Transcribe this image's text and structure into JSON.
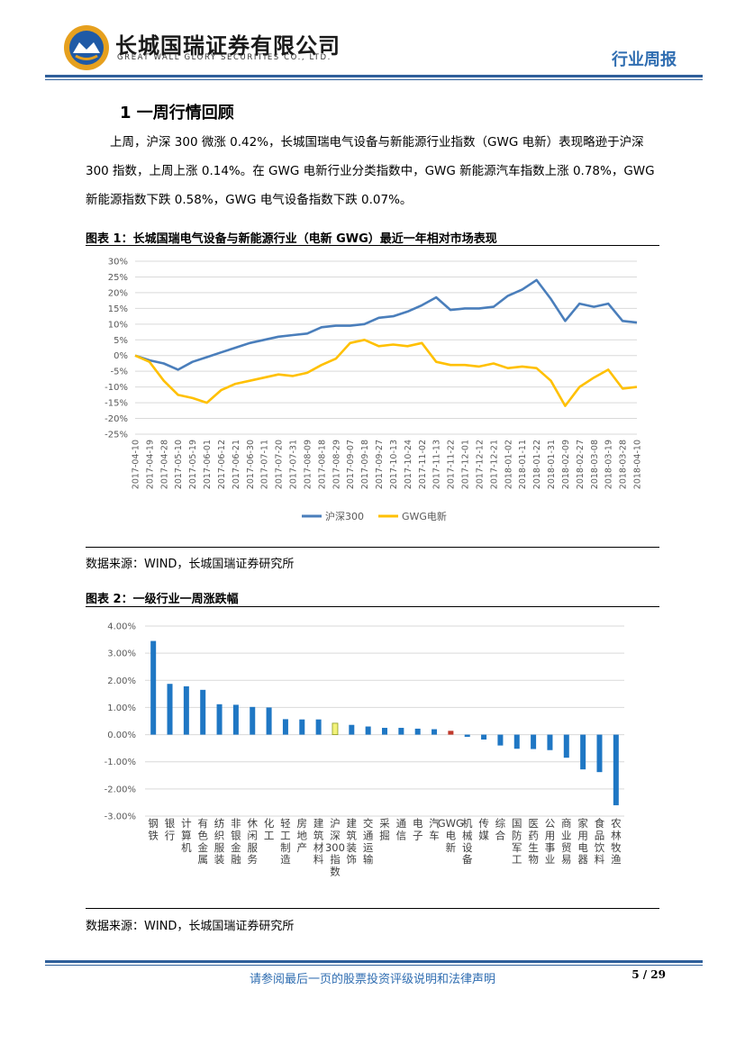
{
  "header": {
    "company_cn": "长城国瑞证券有限公司",
    "company_en": "GREAT WALL GLORY SECURITIES CO., LTD.",
    "report_type": "行业周报"
  },
  "section": {
    "title": "1  一周行情回顾",
    "paragraph": "上周，沪深 300 微涨 0.42%，长城国瑞电气设备与新能源行业指数（GWG 电新）表现略逊于沪深 300 指数，上周上涨 0.14%。在 GWG 电新行业分类指数中，GWG 新能源汽车指数上涨 0.78%，GWG 新能源指数下跌 0.58%，GWG 电气设备指数下跌 0.07%。"
  },
  "figure1": {
    "title": "图表 1：长城国瑞电气设备与新能源行业（电新 GWG）最近一年相对市场表现",
    "source": "数据来源：WIND，长城国瑞证券研究所"
  },
  "figure2": {
    "title": "图表 2：一级行业一周涨跌幅",
    "source": "数据来源：WIND，长城国瑞证券研究所"
  },
  "footer": {
    "disclaimer": "请参阅最后一页的股票投资评级说明和法律声明",
    "page": "5 / 29"
  },
  "chart_data": [
    {
      "type": "line",
      "title": "",
      "ylim": [
        -25,
        30
      ],
      "yticks": [
        "30%",
        "25%",
        "20%",
        "15%",
        "10%",
        "5%",
        "0%",
        "-5%",
        "-10%",
        "-15%",
        "-20%",
        "-25%"
      ],
      "x_tick_labels": [
        "2017-04-10",
        "2017-04-19",
        "2017-04-28",
        "2017-05-10",
        "2017-05-19",
        "2017-06-01",
        "2017-06-12",
        "2017-06-21",
        "2017-06-30",
        "2017-07-11",
        "2017-07-20",
        "2017-07-31",
        "2017-08-09",
        "2017-08-18",
        "2017-08-29",
        "2017-09-07",
        "2017-09-18",
        "2017-09-27",
        "2017-10-13",
        "2017-10-24",
        "2017-11-02",
        "2017-11-13",
        "2017-11-22",
        "2017-12-01",
        "2017-12-12",
        "2017-12-21",
        "2018-01-02",
        "2018-01-11",
        "2018-01-22",
        "2018-01-31",
        "2018-02-09",
        "2018-02-27",
        "2018-03-08",
        "2018-03-19",
        "2018-03-28",
        "2018-04-10"
      ],
      "legend_position": "bottom",
      "grid": true,
      "series": [
        {
          "name": "沪深300",
          "color": "#4a7ebb",
          "values": [
            0,
            -1.5,
            -2.5,
            -4.5,
            -2,
            -0.5,
            1,
            2.5,
            4,
            5,
            6,
            6.5,
            7,
            9,
            9.5,
            9.5,
            10,
            12,
            12.5,
            14,
            16,
            18.5,
            14.5,
            15,
            15,
            15.5,
            19,
            21,
            24,
            18,
            11,
            16.5,
            15.5,
            16.5,
            11,
            10.5
          ]
        },
        {
          "name": "GWG电新",
          "color": "#ffc000",
          "values": [
            0,
            -2,
            -8,
            -12.5,
            -13.5,
            -15,
            -11,
            -9,
            -8,
            -7,
            -6,
            -6.5,
            -5.5,
            -3,
            -1,
            4,
            5,
            3,
            3.5,
            3,
            4,
            -2,
            -3,
            -3,
            -3.5,
            -2.5,
            -4,
            -3.5,
            -4,
            -8,
            -16,
            -10,
            -7,
            -4.5,
            -10.5,
            -10
          ]
        }
      ]
    },
    {
      "type": "bar",
      "title": "",
      "ylim": [
        -3,
        4
      ],
      "yticks": [
        "4.00%",
        "3.00%",
        "2.00%",
        "1.00%",
        "0.00%",
        "-1.00%",
        "-2.00%",
        "-3.00%"
      ],
      "grid": true,
      "categories": [
        "钢铁",
        "银行",
        "计算机",
        "有色金属",
        "纺织服装",
        "非银金融",
        "休闲服务",
        "化工",
        "轻工制造",
        "房地产",
        "建筑材料",
        "沪深300指数",
        "建筑装饰",
        "交通运输",
        "采掘",
        "通信",
        "电子",
        "汽车",
        "GWG电新",
        "机械设备",
        "传媒",
        "综合",
        "国防军工",
        "医药生物",
        "公用事业",
        "商业贸易",
        "家用电器",
        "食品饮料",
        "农林牧渔"
      ],
      "values": [
        3.45,
        1.87,
        1.78,
        1.65,
        1.12,
        1.1,
        1.02,
        1.0,
        0.57,
        0.56,
        0.56,
        0.42,
        0.36,
        0.3,
        0.25,
        0.25,
        0.22,
        0.2,
        0.14,
        -0.08,
        -0.18,
        -0.4,
        -0.52,
        -0.53,
        -0.57,
        -0.85,
        -1.28,
        -1.38,
        -2.6
      ],
      "colors": {
        "default": "#1f77c4",
        "hs300": "#f2f27a",
        "gwg": "#c0392b"
      }
    }
  ]
}
